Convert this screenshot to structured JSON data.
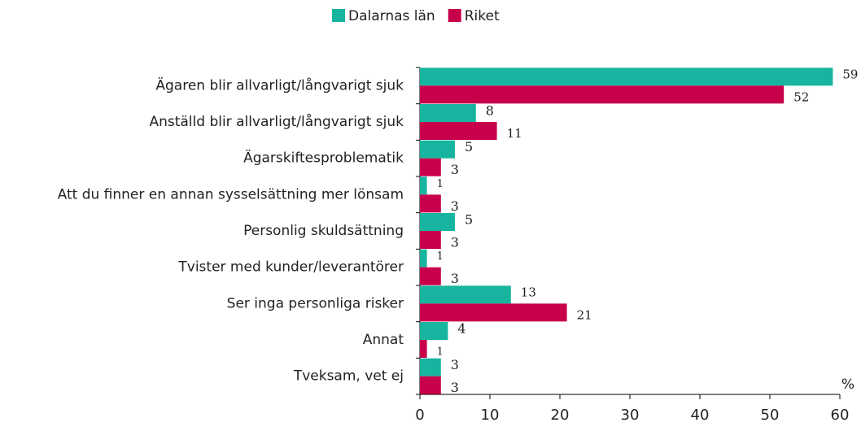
{
  "chart_data": {
    "type": "bar",
    "orientation": "horizontal",
    "categories": [
      "Ägaren blir allvarligt/långvarigt sjuk",
      "Anställd blir allvarligt/långvarigt sjuk",
      "Ägarskiftesproblematik",
      "Att du finner en annan sysselsättning mer lönsam",
      "Personlig skuldsättning",
      "Tvister med kunder/leverantörer",
      "Ser inga personliga risker",
      "Annat",
      "Tveksam, vet ej"
    ],
    "series": [
      {
        "name": "Dalarnas län",
        "color": "#17b59f",
        "values": [
          59,
          8,
          5,
          1,
          5,
          1,
          13,
          4,
          3
        ]
      },
      {
        "name": "Riket",
        "color": "#c8004b",
        "values": [
          52,
          11,
          3,
          3,
          3,
          3,
          21,
          1,
          3
        ]
      }
    ],
    "x_label": "%",
    "xlim": [
      0,
      60
    ],
    "xticks": [
      0,
      10,
      20,
      30,
      40,
      50,
      60
    ],
    "legend": "top"
  }
}
